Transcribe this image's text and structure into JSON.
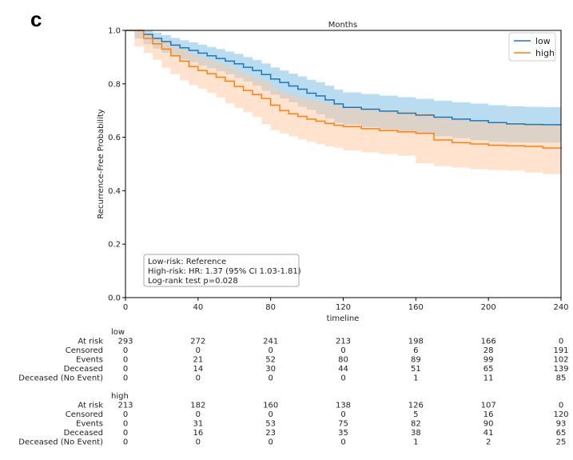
{
  "panel_label": "c",
  "chart_data": {
    "type": "line",
    "subtype": "kaplan-meier",
    "title": "Months",
    "xlabel": "timeline",
    "ylabel": "Recurrence-Free Probability",
    "xlim": [
      0,
      240
    ],
    "ylim": [
      0,
      1.0
    ],
    "x_ticks": [
      0,
      40,
      80,
      120,
      160,
      200,
      240
    ],
    "y_ticks": [
      0.0,
      0.2,
      0.4,
      0.6,
      0.8,
      1.0
    ],
    "x_tick_labels": [
      "0",
      "40",
      "80",
      "120",
      "160",
      "200",
      "240"
    ],
    "y_tick_labels": [
      "0.0",
      "0.2",
      "0.4",
      "0.6",
      "0.8",
      "1.0"
    ],
    "legend_position": "top-right",
    "series": [
      {
        "name": "low",
        "color": "#1f77b4",
        "ci_color": "#7fbfe3",
        "x": [
          0,
          5,
          10,
          15,
          20,
          25,
          30,
          35,
          40,
          45,
          50,
          55,
          60,
          65,
          70,
          75,
          80,
          85,
          90,
          95,
          100,
          105,
          110,
          115,
          120,
          130,
          140,
          150,
          160,
          170,
          180,
          190,
          200,
          210,
          220,
          230,
          240
        ],
        "y": [
          1.0,
          1.0,
          0.985,
          0.97,
          0.958,
          0.945,
          0.935,
          0.925,
          0.915,
          0.905,
          0.895,
          0.885,
          0.875,
          0.862,
          0.85,
          0.835,
          0.818,
          0.805,
          0.792,
          0.78,
          0.765,
          0.755,
          0.74,
          0.725,
          0.712,
          0.705,
          0.698,
          0.69,
          0.683,
          0.675,
          0.668,
          0.662,
          0.655,
          0.65,
          0.648,
          0.647,
          0.647
        ],
        "upper": [
          1.0,
          1.0,
          1.0,
          0.992,
          0.982,
          0.972,
          0.963,
          0.955,
          0.947,
          0.938,
          0.93,
          0.921,
          0.912,
          0.9,
          0.889,
          0.876,
          0.861,
          0.85,
          0.838,
          0.828,
          0.815,
          0.806,
          0.793,
          0.779,
          0.768,
          0.762,
          0.756,
          0.75,
          0.744,
          0.737,
          0.731,
          0.726,
          0.72,
          0.716,
          0.714,
          0.713,
          0.713
        ],
        "lower": [
          1.0,
          1.0,
          0.97,
          0.948,
          0.932,
          0.916,
          0.904,
          0.892,
          0.881,
          0.869,
          0.858,
          0.847,
          0.836,
          0.822,
          0.809,
          0.793,
          0.774,
          0.759,
          0.745,
          0.731,
          0.714,
          0.703,
          0.686,
          0.67,
          0.655,
          0.647,
          0.638,
          0.629,
          0.621,
          0.612,
          0.604,
          0.597,
          0.589,
          0.583,
          0.581,
          0.58,
          0.58
        ]
      },
      {
        "name": "high",
        "color": "#ff7f0e",
        "ci_color": "#ffc8a0",
        "x": [
          0,
          5,
          10,
          15,
          20,
          25,
          30,
          35,
          40,
          45,
          50,
          55,
          60,
          65,
          70,
          75,
          80,
          85,
          90,
          95,
          100,
          105,
          110,
          115,
          120,
          130,
          140,
          150,
          160,
          170,
          180,
          190,
          200,
          210,
          220,
          230,
          240
        ],
        "y": [
          1.0,
          1.0,
          0.97,
          0.95,
          0.93,
          0.905,
          0.885,
          0.865,
          0.85,
          0.838,
          0.825,
          0.81,
          0.79,
          0.775,
          0.76,
          0.745,
          0.72,
          0.7,
          0.688,
          0.678,
          0.668,
          0.66,
          0.652,
          0.645,
          0.64,
          0.632,
          0.625,
          0.62,
          0.615,
          0.59,
          0.58,
          0.575,
          0.57,
          0.568,
          0.566,
          0.56,
          0.555
        ],
        "upper": [
          1.0,
          1.0,
          0.99,
          0.978,
          0.963,
          0.944,
          0.928,
          0.911,
          0.899,
          0.889,
          0.878,
          0.865,
          0.848,
          0.835,
          0.822,
          0.809,
          0.786,
          0.768,
          0.757,
          0.748,
          0.739,
          0.732,
          0.725,
          0.719,
          0.715,
          0.708,
          0.702,
          0.698,
          0.694,
          0.672,
          0.664,
          0.66,
          0.656,
          0.655,
          0.653,
          0.648,
          0.645
        ],
        "lower": [
          1.0,
          1.0,
          0.94,
          0.915,
          0.89,
          0.86,
          0.836,
          0.813,
          0.795,
          0.781,
          0.766,
          0.749,
          0.727,
          0.71,
          0.693,
          0.676,
          0.649,
          0.627,
          0.614,
          0.603,
          0.592,
          0.583,
          0.574,
          0.566,
          0.561,
          0.551,
          0.543,
          0.537,
          0.531,
          0.503,
          0.492,
          0.486,
          0.48,
          0.477,
          0.475,
          0.468,
          0.462
        ]
      }
    ],
    "annotation": [
      "Low-risk: Reference",
      "High-risk: HR: 1.37 (95% CI 1.03-1.81)",
      "Log-rank test p=0.028"
    ],
    "risk_table": {
      "timepoints": [
        "0",
        "40",
        "80",
        "120",
        "160",
        "200",
        "240"
      ],
      "groups": [
        {
          "name": "low",
          "rows": [
            {
              "label": "At risk",
              "values": [
                "293",
                "272",
                "241",
                "213",
                "198",
                "166",
                "0"
              ]
            },
            {
              "label": "Censored",
              "values": [
                "0",
                "0",
                "0",
                "0",
                "6",
                "28",
                "191"
              ]
            },
            {
              "label": "Events",
              "values": [
                "0",
                "21",
                "52",
                "80",
                "89",
                "99",
                "102"
              ]
            },
            {
              "label": "Deceased",
              "values": [
                "0",
                "14",
                "30",
                "44",
                "51",
                "65",
                "139"
              ]
            },
            {
              "label": "Deceased (No Event)",
              "values": [
                "0",
                "0",
                "0",
                "0",
                "1",
                "11",
                "85"
              ]
            }
          ]
        },
        {
          "name": "high",
          "rows": [
            {
              "label": "At risk",
              "values": [
                "213",
                "182",
                "160",
                "138",
                "126",
                "107",
                "0"
              ]
            },
            {
              "label": "Censored",
              "values": [
                "0",
                "0",
                "0",
                "0",
                "5",
                "16",
                "120"
              ]
            },
            {
              "label": "Events",
              "values": [
                "0",
                "31",
                "53",
                "75",
                "82",
                "90",
                "93"
              ]
            },
            {
              "label": "Deceased",
              "values": [
                "0",
                "16",
                "23",
                "35",
                "38",
                "41",
                "65"
              ]
            },
            {
              "label": "Deceased (No Event)",
              "values": [
                "0",
                "0",
                "0",
                "0",
                "1",
                "2",
                "25"
              ]
            }
          ]
        }
      ]
    }
  }
}
